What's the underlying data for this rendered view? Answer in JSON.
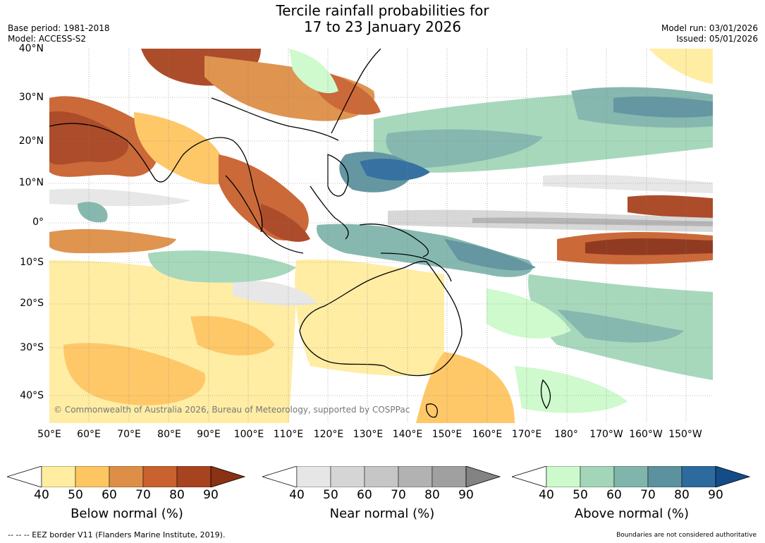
{
  "title": {
    "line1": "Tercile rainfall probabilities for",
    "line2": "17 to 23 January 2026"
  },
  "meta": {
    "base_period": "Base period: 1981-2018",
    "model": "Model: ACCESS-S2",
    "model_run": "Model run: 03/01/2026",
    "issued": "Issued: 05/01/2026"
  },
  "map": {
    "lat_labels": [
      "40°N",
      "30°N",
      "20°N",
      "10°N",
      "0°",
      "10°S",
      "20°S",
      "30°S",
      "40°S"
    ],
    "lon_labels": [
      "50°E",
      "60°E",
      "70°E",
      "80°E",
      "90°E",
      "100°E",
      "110°E",
      "120°E",
      "130°E",
      "140°E",
      "150°E",
      "160°E",
      "170°E",
      "180°",
      "170°W",
      "160°W",
      "150°W"
    ],
    "copyright": "© Commonwealth of Australia 2026, Bureau of Meteorology, supported by COSPPac"
  },
  "colorbars": [
    {
      "title": "Below normal (%)",
      "ticks": [
        "40",
        "50",
        "60",
        "70",
        "80",
        "90"
      ],
      "colors": [
        "#ffeda0",
        "#fec661",
        "#de8f47",
        "#c9622f",
        "#a8431f",
        "#8b3116"
      ]
    },
    {
      "title": "Near normal (%)",
      "ticks": [
        "40",
        "50",
        "60",
        "70",
        "80",
        "90"
      ],
      "colors": [
        "#e6e6e6",
        "#d5d5d5",
        "#c6c6c6",
        "#b2b2b2",
        "#a0a0a0",
        "#838383"
      ]
    },
    {
      "title": "Above normal (%)",
      "ticks": [
        "40",
        "50",
        "60",
        "70",
        "80",
        "90"
      ],
      "colors": [
        "#ccfacc",
        "#a3d6b9",
        "#80b5ac",
        "#5c929e",
        "#2d6a9d",
        "#144c88"
      ]
    }
  ],
  "footer": {
    "eez": "--  --  -- EEZ border V11 (Flanders Marine Institute, 2019).",
    "disclaimer": "Boundaries are not considered authoritative"
  }
}
